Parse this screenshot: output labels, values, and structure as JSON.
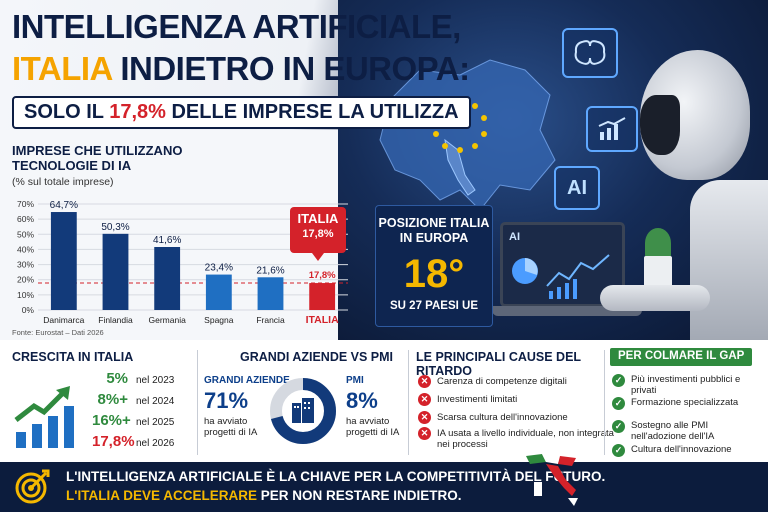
{
  "header": {
    "title_line1": "INTELLIGENZA ARTIFICIALE,",
    "title_line2_highlight": "ITALIA",
    "title_line2_rest": " INDIETRO IN EUROPA:",
    "subtitle_pre": "SOLO IL ",
    "subtitle_value": "17,8%",
    "subtitle_post": " DELLE IMPRESE LA UTILIZZA"
  },
  "chart_data": {
    "type": "bar",
    "title": "IMPRESE CHE UTILIZZANO TECNOLOGIE DI IA",
    "subtitle": "(% sul totale imprese)",
    "categories": [
      "Danimarca",
      "Finlandia",
      "Germania",
      "Spagna",
      "Francia",
      "ITALIA"
    ],
    "values": [
      64.7,
      50.3,
      41.6,
      23.4,
      21.6,
      17.8
    ],
    "value_labels": [
      "64,7%",
      "50,3%",
      "41,6%",
      "23,4%",
      "21,6%",
      "17,8%"
    ],
    "ylim": [
      0,
      70
    ],
    "yticks": [
      "0%",
      "10%",
      "20%",
      "30%",
      "40%",
      "50%",
      "60%",
      "70%"
    ],
    "reference_line": 17.8,
    "grid": true,
    "colors": [
      "#123a7a",
      "#123a7a",
      "#123a7a",
      "#1f6fc2",
      "#1f6fc2",
      "#d4222a"
    ],
    "source": "Fonte: Eurostat – Dati 2026",
    "callout_title": "ITALIA",
    "callout_value": "17,8%"
  },
  "position": {
    "heading": "POSIZIONE ITALIA IN EUROPA",
    "rank": "18°",
    "footer": "SU 27 PAESI UE"
  },
  "icons": {
    "brain": "brain-icon",
    "chart": "growth-chart-icon",
    "ai_label": "AI",
    "laptop_label": "AI"
  },
  "growth": {
    "heading": "CRESCITA IN ITALIA",
    "rows": [
      {
        "value": "5%",
        "year": "nel 2023",
        "color": "#2f8a3e"
      },
      {
        "value": "8%+",
        "year": "nel 2024",
        "color": "#2f8a3e"
      },
      {
        "value": "16%+",
        "year": "nel 2025",
        "color": "#2f8a3e"
      },
      {
        "value": "17,8%",
        "year": "nel 2026",
        "color": "#d4222a"
      }
    ]
  },
  "companies": {
    "heading": "GRANDI AZIENDE VS PMI",
    "large_label": "GRANDI AZIENDE",
    "large_value": "71%",
    "large_note": "ha avviato progetti di IA",
    "large_fraction": 0.71,
    "sme_label": "PMI",
    "sme_value": "8%",
    "sme_note": "ha avviato progetti di IA"
  },
  "causes": {
    "heading": "LE PRINCIPALI CAUSE DEL RITARDO",
    "items": [
      "Carenza di competenze digitali",
      "Investimenti limitati",
      "Scarsa cultura dell'innovazione",
      "IA usata a livello individuale, non integrata nei processi"
    ]
  },
  "gap": {
    "heading": "PER COLMARE IL GAP",
    "items": [
      "Più investimenti pubblici e privati",
      "Formazione specializzata",
      "Sostegno alle PMI nell'adozione dell'IA",
      "Cultura dell'innovazione"
    ]
  },
  "footer": {
    "line1": "L'INTELLIGENZA ARTIFICIALE È LA CHIAVE PER LA COMPETITIVITÀ DEL FUTURO.",
    "line2_highlight": "L'ITALIA DEVE ACCELERARE",
    "line2_rest": " PER NON RESTARE INDIETRO."
  }
}
